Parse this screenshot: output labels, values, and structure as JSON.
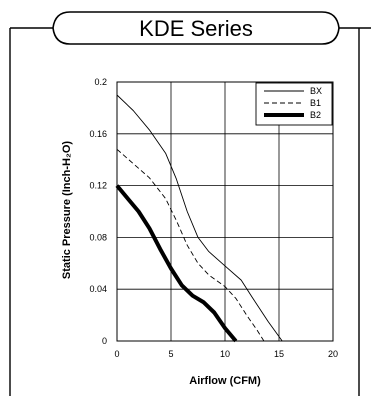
{
  "header": {
    "title": "KDE Series"
  },
  "chart_data": {
    "type": "line",
    "xlabel": "Airflow (CFM)",
    "ylabel": "Static Pressure (Inch-H₂O)",
    "xlim": [
      0,
      20
    ],
    "ylim": [
      0,
      0.2
    ],
    "xticks": [
      "0",
      "5",
      "10",
      "15",
      "20"
    ],
    "yticks": [
      "0",
      "0.04",
      "0.08",
      "0.12",
      "0.16",
      "0.2"
    ],
    "grid": true,
    "legend_position": "top-right",
    "series": [
      {
        "name": "BX",
        "line_style": "thin solid",
        "points": [
          [
            0,
            0.19
          ],
          [
            1.5,
            0.178
          ],
          [
            3,
            0.163
          ],
          [
            4.5,
            0.145
          ],
          [
            5.5,
            0.125
          ],
          [
            6.5,
            0.1
          ],
          [
            7.5,
            0.08
          ],
          [
            8.5,
            0.069
          ],
          [
            10,
            0.058
          ],
          [
            11.5,
            0.047
          ],
          [
            12.5,
            0.034
          ],
          [
            14,
            0.015
          ],
          [
            15.3,
            0
          ]
        ]
      },
      {
        "name": "B1",
        "line_style": "dashed",
        "points": [
          [
            0,
            0.148
          ],
          [
            1.5,
            0.137
          ],
          [
            3,
            0.126
          ],
          [
            4.5,
            0.11
          ],
          [
            5.5,
            0.093
          ],
          [
            6.5,
            0.074
          ],
          [
            7.5,
            0.06
          ],
          [
            8.5,
            0.051
          ],
          [
            10,
            0.042
          ],
          [
            11,
            0.033
          ],
          [
            12,
            0.02
          ],
          [
            13,
            0.008
          ],
          [
            13.6,
            0
          ]
        ]
      },
      {
        "name": "B2",
        "line_style": "thick solid",
        "points": [
          [
            0,
            0.12
          ],
          [
            1,
            0.11
          ],
          [
            2,
            0.1
          ],
          [
            3,
            0.087
          ],
          [
            4,
            0.071
          ],
          [
            5,
            0.056
          ],
          [
            6,
            0.043
          ],
          [
            7,
            0.035
          ],
          [
            8,
            0.03
          ],
          [
            9,
            0.022
          ],
          [
            10,
            0.01
          ],
          [
            11,
            0
          ]
        ]
      }
    ]
  }
}
